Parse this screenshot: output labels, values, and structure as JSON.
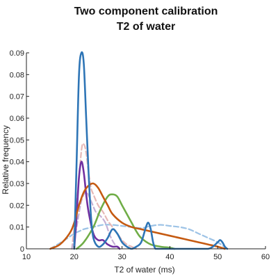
{
  "chart_data": {
    "type": "line",
    "title": "Two component calibration",
    "subtitle": "T2 of water",
    "xlabel": "T2 of water (ms)",
    "ylabel": "Relative frequency",
    "xlim": [
      10,
      60
    ],
    "ylim": [
      0,
      0.09
    ],
    "xticks": [
      "10",
      "20",
      "30",
      "40",
      "50",
      "60"
    ],
    "yticks": [
      "0",
      "0.01",
      "0.02",
      "0.03",
      "0.04",
      "0.05",
      "0.06",
      "0.07",
      "0.08",
      "0.09"
    ],
    "grid": false,
    "series": [
      {
        "color": "#9dc3e6",
        "dashed": true,
        "x": [
          15,
          18,
          20,
          21,
          22,
          24,
          26,
          28,
          30,
          32,
          34,
          36,
          38,
          40,
          42,
          44,
          46,
          48,
          50,
          52
        ],
        "y": [
          0,
          0.004,
          0.007,
          0.008,
          0.009,
          0.01,
          0.011,
          0.011,
          0.0105,
          0.01,
          0.0095,
          0.0105,
          0.011,
          0.0105,
          0.01,
          0.009,
          0.007,
          0.005,
          0.003,
          0
        ]
      },
      {
        "color": "#e6b8b7",
        "dashed": true,
        "x": [
          19.5,
          20.5,
          21.5,
          22,
          22.5,
          23,
          23.5,
          24,
          25,
          26,
          27,
          28,
          29,
          30,
          31,
          32,
          33
        ],
        "y": [
          0,
          0.02,
          0.045,
          0.048,
          0.044,
          0.035,
          0.028,
          0.025,
          0.02,
          0.017,
          0.013,
          0.01,
          0.007,
          0.004,
          0.002,
          0.001,
          0
        ]
      },
      {
        "color": "#c5b0d5",
        "dashed": true,
        "x": [
          19.5,
          20.5,
          21.5,
          22.5,
          23.5,
          24.5,
          25.5,
          26.5,
          27.5,
          28.5,
          29.5
        ],
        "y": [
          0,
          0.01,
          0.022,
          0.026,
          0.022,
          0.017,
          0.015,
          0.012,
          0.006,
          0.002,
          0
        ]
      },
      {
        "color": "#7030a0",
        "dashed": false,
        "x": [
          20,
          20.5,
          21,
          21.5,
          22,
          22.5,
          23,
          24,
          25,
          26,
          27,
          28,
          29,
          29.5
        ],
        "y": [
          0,
          0.015,
          0.033,
          0.04,
          0.035,
          0.025,
          0.017,
          0.007,
          0.004,
          0.004,
          0.002,
          0.001,
          0.001,
          0
        ]
      },
      {
        "color": "#70ad47",
        "dashed": false,
        "x": [
          20.5,
          22,
          24,
          25.5,
          27,
          28,
          29,
          30,
          31,
          32,
          33,
          34,
          36,
          38,
          40,
          41
        ],
        "y": [
          0,
          0.003,
          0.01,
          0.018,
          0.024,
          0.025,
          0.024,
          0.02,
          0.016,
          0.012,
          0.008,
          0.005,
          0.002,
          0.001,
          0.0005,
          0
        ]
      },
      {
        "color": "#c55a11",
        "dashed": false,
        "x": [
          15,
          17,
          19,
          20,
          21,
          22,
          23,
          24,
          25,
          26,
          27,
          28,
          30,
          32,
          34,
          36,
          38,
          40,
          42,
          44,
          46,
          48,
          50,
          51.5
        ],
        "y": [
          0,
          0.002,
          0.007,
          0.012,
          0.02,
          0.026,
          0.029,
          0.03,
          0.028,
          0.024,
          0.02,
          0.016,
          0.012,
          0.01,
          0.009,
          0.008,
          0.007,
          0.006,
          0.005,
          0.004,
          0.003,
          0.002,
          0.001,
          0
        ]
      },
      {
        "color": "#2e75b6",
        "dashed": false,
        "x": [
          20,
          20.5,
          21,
          21.5,
          22,
          22.5,
          23,
          23.5,
          24,
          25,
          26,
          27,
          28,
          29,
          30,
          31,
          32,
          33,
          34,
          35,
          35.5,
          36,
          36.5,
          37,
          38,
          40,
          42,
          44,
          46,
          48,
          49,
          50,
          50.5,
          51,
          51.5,
          52
        ],
        "y": [
          0,
          0.04,
          0.08,
          0.09,
          0.085,
          0.06,
          0.035,
          0.015,
          0.005,
          0.001,
          0.002,
          0.005,
          0.009,
          0.007,
          0.003,
          0.001,
          0,
          0.001,
          0.003,
          0.01,
          0.012,
          0.009,
          0.003,
          0,
          0,
          0,
          0,
          0,
          0,
          0,
          0.001,
          0.003,
          0.004,
          0.003,
          0.001,
          0
        ]
      }
    ]
  }
}
